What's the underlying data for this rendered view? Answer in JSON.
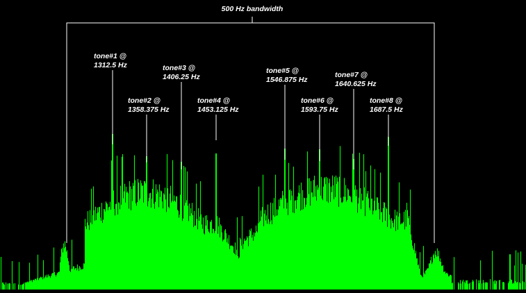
{
  "chart_data": {
    "type": "bar",
    "title": "",
    "xlabel": "",
    "ylabel": "",
    "grid": false,
    "bandwidth_label": "500 Hz bandwidth",
    "bandwidth_hz": [
      1250,
      1750
    ],
    "tones": [
      {
        "name": "tone#1 @",
        "freq_label": "1312.5 Hz",
        "freq": 1312.5
      },
      {
        "name": "tone#2 @",
        "freq_label": "1358.375 Hz",
        "freq": 1358.375
      },
      {
        "name": "tone#3 @",
        "freq_label": "1406.25 Hz",
        "freq": 1406.25
      },
      {
        "name": "tone#4 @",
        "freq_label": "1453.125 Hz",
        "freq": 1453.125
      },
      {
        "name": "tone#5 @",
        "freq_label": "1546.875 Hz",
        "freq": 1546.875
      },
      {
        "name": "tone#6 @",
        "freq_label": "1593.75 Hz",
        "freq": 1593.75
      },
      {
        "name": "tone#7 @",
        "freq_label": "1640.625 Hz",
        "freq": 1640.625
      },
      {
        "name": "tone#8 @",
        "freq_label": "1687.5 Hz",
        "freq": 1687.5
      }
    ],
    "spectrum_color": "#00ff00",
    "background_color": "#000000",
    "annotation_color": "#ffffff"
  }
}
